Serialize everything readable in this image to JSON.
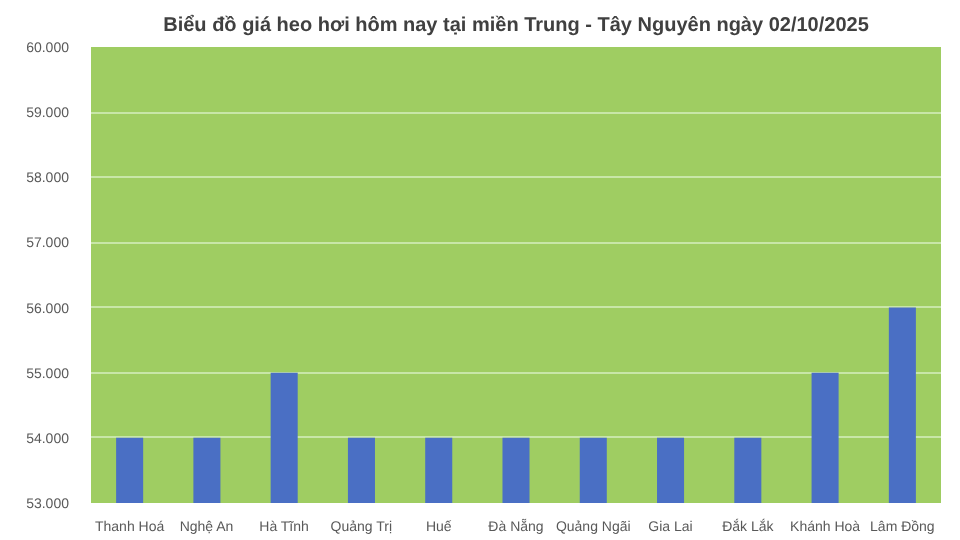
{
  "chart_data": {
    "type": "bar",
    "title": "Biểu đồ giá heo hơi hôm nay tại miền Trung - Tây Nguyên ngày 02/10/2025",
    "categories": [
      "Thanh Hoá",
      "Nghệ An",
      "Hà Tĩnh",
      "Quảng Trị",
      "Huế",
      "Đà Nẵng",
      "Quảng Ngãi",
      "Gia Lai",
      "Đắk Lắk",
      "Khánh Hoà",
      "Lâm Đồng"
    ],
    "values": [
      54000,
      54000,
      55000,
      54000,
      54000,
      54000,
      54000,
      54000,
      54000,
      55000,
      56000
    ],
    "color": "#4a6fc4",
    "ylim": [
      53000,
      60000
    ],
    "yticks": [
      {
        "value": 53000,
        "label": "53.000"
      },
      {
        "value": 54000,
        "label": "54.000"
      },
      {
        "value": 55000,
        "label": "55.000"
      },
      {
        "value": 56000,
        "label": "56.000"
      },
      {
        "value": 57000,
        "label": "57.000"
      },
      {
        "value": 58000,
        "label": "58.000"
      },
      {
        "value": 59000,
        "label": "59.000"
      },
      {
        "value": 60000,
        "label": "60.000"
      }
    ],
    "grid": "y"
  }
}
